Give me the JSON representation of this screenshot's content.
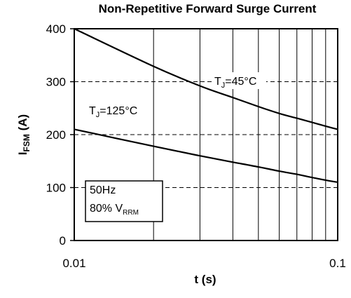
{
  "chart_data": {
    "type": "line",
    "title": "Non-Repetitive Forward Surge Current",
    "xlabel": "t (s)",
    "ylabel": {
      "main": "I",
      "sub": "FSM",
      "rest": " (A)"
    },
    "xscale": "log",
    "xlim": [
      0.01,
      0.1
    ],
    "ylim": [
      0,
      400
    ],
    "xticks": [
      0.01,
      0.1
    ],
    "xtick_labels": [
      "0.01",
      "0.1"
    ],
    "yticks": [
      0,
      100,
      200,
      300,
      400
    ],
    "ytick_labels": [
      "0",
      "100",
      "200",
      "300",
      "400"
    ],
    "grid": {
      "x": "solid minor (log decades)",
      "y": "dashed"
    },
    "series": [
      {
        "name": {
          "pre": "T",
          "sub": "J",
          "post": "=45°C"
        },
        "x": [
          0.01,
          0.02,
          0.03,
          0.04,
          0.05,
          0.06,
          0.07,
          0.08,
          0.09,
          0.1
        ],
        "values": [
          400,
          329,
          292,
          270,
          253,
          240,
          231,
          223,
          216,
          210
        ]
      },
      {
        "name": {
          "pre": "T",
          "sub": "J",
          "post": "=125°C"
        },
        "x": [
          0.01,
          0.02,
          0.03,
          0.04,
          0.05,
          0.06,
          0.07,
          0.08,
          0.09,
          0.1
        ],
        "values": [
          210,
          178,
          160,
          148,
          139,
          131,
          125,
          119,
          114,
          110
        ]
      }
    ],
    "annotation_box": {
      "line1": "50Hz",
      "line2": {
        "pre": "80% V",
        "sub": "RRM"
      }
    }
  }
}
